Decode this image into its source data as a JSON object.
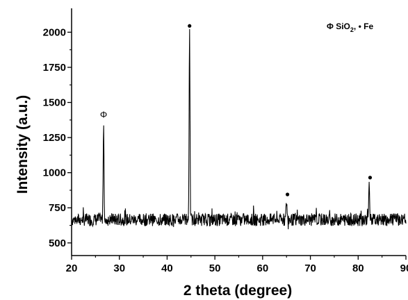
{
  "chart_data": {
    "type": "line",
    "title": "",
    "xlabel": "2 theta (degree)",
    "ylabel": "Intensity (a.u.)",
    "xlim": [
      20,
      90
    ],
    "ylim": [
      410,
      2170
    ],
    "x_ticks": [
      20,
      30,
      40,
      50,
      60,
      70,
      80,
      90
    ],
    "y_ticks": [
      500,
      750,
      1000,
      1250,
      1500,
      1750,
      2000
    ],
    "grid": false,
    "legend": {
      "placement": "top-right",
      "phase1_symbol": "Φ",
      "phase1_name": "SiO",
      "phase1_subscript": "2",
      "separator": ",",
      "phase2_symbol": "•",
      "phase2_name": "Fe"
    },
    "baseline": {
      "x_range": [
        20,
        90
      ],
      "mean": 665,
      "noise_amplitude": 45
    },
    "series": [
      {
        "color": "#000000",
        "peaks": [
          {
            "x": 26.7,
            "y": 1350
          },
          {
            "x": 44.7,
            "y": 2020
          },
          {
            "x": 65.0,
            "y": 800
          },
          {
            "x": 82.3,
            "y": 910
          }
        ]
      }
    ],
    "annotations": [
      {
        "x": 26.7,
        "y": 1415,
        "symbol": "Φ"
      },
      {
        "x": 44.7,
        "y": 2045,
        "symbol": "•"
      },
      {
        "x": 65.2,
        "y": 845,
        "symbol": "•"
      },
      {
        "x": 82.5,
        "y": 965,
        "symbol": "•"
      }
    ]
  }
}
